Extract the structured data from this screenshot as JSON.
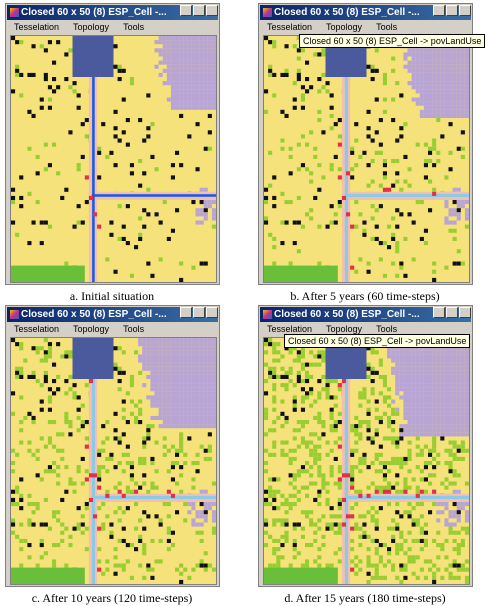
{
  "panels": [
    {
      "window_title": "Closed 60 x 50 (8)  ESP_Cell -...",
      "menu": [
        "Tesselation",
        "Topology",
        "Tools"
      ],
      "caption": "a. Initial situation"
    },
    {
      "window_title": "Closed 60 x 50 (8)  ESP_Cell -...",
      "menu": [
        "Tesselation",
        "Topology",
        "Tools"
      ],
      "caption": "b. After 5 years (60 time-steps)",
      "tooltip": "Closed 60 x 50 (8)  ESP_Cell -> povLandUse"
    },
    {
      "window_title": "Closed 60 x 50 (8)  ESP_Cell -...",
      "menu": [
        "Tesselation",
        "Topology",
        "Tools"
      ],
      "caption": "c. After 10 years (120 time-steps)"
    },
    {
      "window_title": "Closed 60 x 50 (8)  ESP_Cell -...",
      "menu": [
        "Tesselation",
        "Topology",
        "Tools"
      ],
      "caption": "d. After 15 years (180 time-steps)",
      "tooltip": "Closed 60 x 50 (8)  ESP_Cell -> povLandUse"
    }
  ]
}
